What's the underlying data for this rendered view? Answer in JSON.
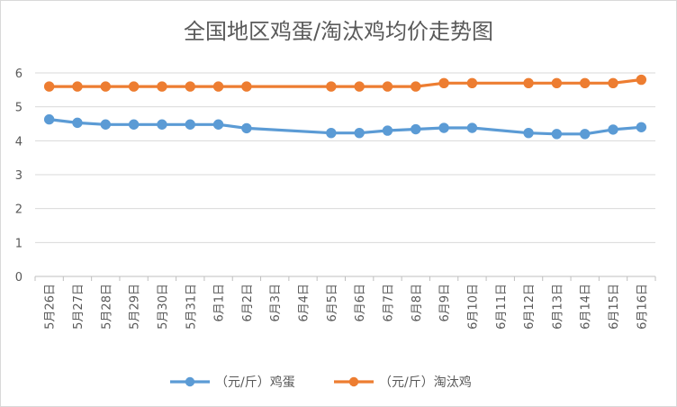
{
  "chart_data": {
    "type": "line",
    "title": "全国地区鸡蛋/淘汰鸡均价走势图",
    "categories": [
      "5月26日",
      "5月27日",
      "5月28日",
      "5月29日",
      "5月30日",
      "5月31日",
      "6月1日",
      "6月2日",
      "6月3日",
      "6月4日",
      "6月5日",
      "6月6日",
      "6月7日",
      "6月8日",
      "6月9日",
      "6月10日",
      "6月11日",
      "6月12日",
      "6月13日",
      "6月14日",
      "6月15日",
      "6月16日"
    ],
    "ylim": [
      0,
      6
    ],
    "yticks": [
      0,
      1,
      2,
      3,
      4,
      5,
      6
    ],
    "grid": true,
    "legend_position": "bottom",
    "series": [
      {
        "name": "（元/斤）鸡蛋",
        "color": "#5b9bd5",
        "values": [
          4.63,
          4.53,
          4.48,
          4.48,
          4.48,
          4.48,
          4.48,
          4.37,
          null,
          null,
          4.23,
          4.23,
          4.3,
          4.34,
          4.38,
          4.38,
          null,
          4.23,
          4.2,
          4.2,
          4.33,
          4.4
        ]
      },
      {
        "name": "（元/斤）淘汰鸡",
        "color": "#ed7d31",
        "values": [
          5.6,
          5.6,
          5.6,
          5.6,
          5.6,
          5.6,
          5.6,
          5.6,
          null,
          null,
          5.6,
          5.6,
          5.6,
          5.6,
          5.7,
          5.7,
          null,
          5.7,
          5.7,
          5.7,
          5.7,
          5.8
        ]
      }
    ]
  }
}
